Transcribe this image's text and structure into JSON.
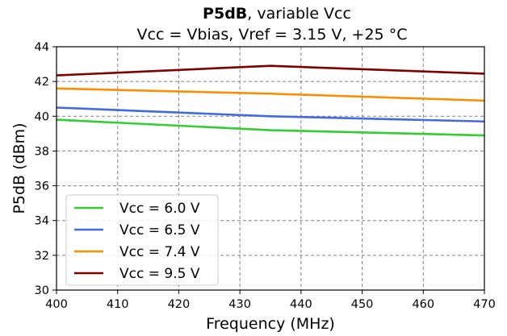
{
  "chart_data": {
    "type": "line",
    "title_bold": "P5dB",
    "title_rest": ", variable Vcc",
    "subtitle": "Vcc = Vbias, Vref = 3.15 V, +25 °C",
    "xlabel": "Frequency (MHz)",
    "ylabel": "P5dB (dBm)",
    "xlim": [
      400,
      470
    ],
    "ylim": [
      30,
      44
    ],
    "xticks": [
      "400",
      "410",
      "420",
      "430",
      "440",
      "450",
      "460",
      "470"
    ],
    "yticks": [
      "30",
      "32",
      "34",
      "36",
      "38",
      "40",
      "42",
      "44"
    ],
    "grid": true,
    "legend_position": "lower-left",
    "series": [
      {
        "name": "Vcc = 6.0 V",
        "color": "#32cd32",
        "x": [
          400,
          435,
          470
        ],
        "y": [
          39.8,
          39.2,
          38.9
        ]
      },
      {
        "name": "Vcc = 6.5 V",
        "color": "#4169e1",
        "x": [
          400,
          435,
          470
        ],
        "y": [
          40.5,
          40.0,
          39.7
        ]
      },
      {
        "name": "Vcc = 7.4 V",
        "color": "#ff8c00",
        "x": [
          400,
          435,
          470
        ],
        "y": [
          41.6,
          41.3,
          40.9
        ]
      },
      {
        "name": "Vcc = 9.5 V",
        "color": "#800000",
        "x": [
          400,
          435,
          470
        ],
        "y": [
          42.35,
          42.9,
          42.45
        ]
      }
    ]
  }
}
